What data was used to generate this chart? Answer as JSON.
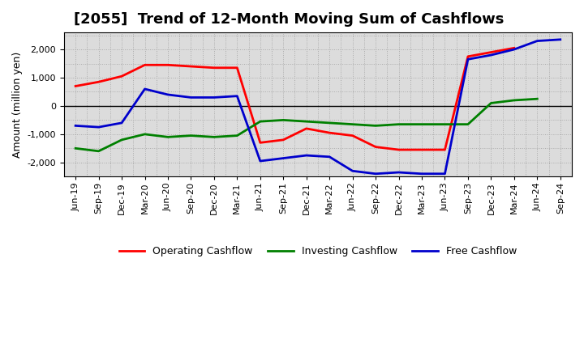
{
  "title": "[2055]  Trend of 12-Month Moving Sum of Cashflows",
  "ylabel": "Amount (million yen)",
  "background_color": "#ffffff",
  "plot_background_color": "#dcdcdc",
  "grid_color": "#aaaaaa",
  "x_labels": [
    "Jun-19",
    "Sep-19",
    "Dec-19",
    "Mar-20",
    "Jun-20",
    "Sep-20",
    "Dec-20",
    "Mar-21",
    "Jun-21",
    "Sep-21",
    "Dec-21",
    "Mar-22",
    "Jun-22",
    "Sep-22",
    "Dec-22",
    "Mar-23",
    "Jun-23",
    "Sep-23",
    "Dec-23",
    "Mar-24",
    "Jun-24",
    "Sep-24"
  ],
  "operating_cashflow": [
    700,
    850,
    1050,
    1450,
    1450,
    1400,
    1350,
    1350,
    -1300,
    -1200,
    -800,
    -950,
    -1050,
    -1450,
    -1550,
    -1550,
    -1550,
    1750,
    1900,
    2050,
    null,
    null
  ],
  "investing_cashflow": [
    -1500,
    -1600,
    -1200,
    -1000,
    -1100,
    -1050,
    -1100,
    -1050,
    -550,
    -500,
    -550,
    -600,
    -650,
    -700,
    -650,
    -650,
    -650,
    -650,
    100,
    200,
    250,
    null
  ],
  "free_cashflow": [
    -700,
    -750,
    -600,
    600,
    400,
    300,
    300,
    350,
    -1950,
    -1850,
    -1750,
    -1800,
    -2300,
    -2400,
    -2350,
    -2400,
    -2400,
    1650,
    1800,
    2000,
    2300,
    2350
  ],
  "operating_color": "#ff0000",
  "investing_color": "#008000",
  "free_color": "#0000cc",
  "line_width": 2.0,
  "ylim": [
    -2500,
    2600
  ],
  "yticks": [
    -2000,
    -1000,
    0,
    1000,
    2000
  ],
  "legend_labels": [
    "Operating Cashflow",
    "Investing Cashflow",
    "Free Cashflow"
  ],
  "title_fontsize": 13,
  "axis_fontsize": 9,
  "tick_fontsize": 8
}
